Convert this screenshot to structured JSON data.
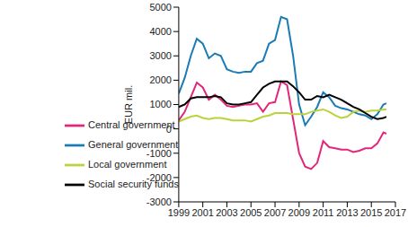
{
  "chart_data": {
    "type": "line",
    "y_label": "EUR mil.",
    "x": [
      1999.0,
      1999.5,
      2000.0,
      2000.5,
      2001.0,
      2001.5,
      2002.0,
      2002.5,
      2003.0,
      2003.5,
      2004.0,
      2004.5,
      2005.0,
      2005.5,
      2006.0,
      2006.5,
      2007.0,
      2007.5,
      2008.0,
      2008.5,
      2009.0,
      2009.5,
      2010.0,
      2010.5,
      2011.0,
      2011.5,
      2012.0,
      2012.5,
      2013.0,
      2013.5,
      2014.0,
      2014.5,
      2015.0,
      2015.5,
      2016.0,
      2016.25
    ],
    "series": [
      {
        "name": "General government",
        "color": "#1b7bb4",
        "values": [
          1450,
          2100,
          3000,
          3700,
          3500,
          2900,
          3100,
          3000,
          2450,
          2350,
          2300,
          2350,
          2350,
          2700,
          2800,
          3500,
          3650,
          4600,
          4500,
          3000,
          1000,
          150,
          500,
          900,
          1500,
          1300,
          950,
          850,
          800,
          700,
          600,
          550,
          400,
          600,
          1000,
          1050
        ]
      },
      {
        "name": "Central government",
        "color": "#e2267a",
        "values": [
          350,
          700,
          1300,
          1900,
          1700,
          1200,
          1400,
          1200,
          950,
          900,
          950,
          1000,
          1000,
          1050,
          700,
          1050,
          1100,
          1950,
          1800,
          400,
          -1000,
          -1550,
          -1650,
          -1400,
          -500,
          -750,
          -800,
          -850,
          -850,
          -950,
          -900,
          -800,
          -800,
          -600,
          -150,
          -200
        ]
      },
      {
        "name": "Local government",
        "color": "#bcd23b",
        "values": [
          300,
          400,
          500,
          550,
          450,
          400,
          450,
          450,
          400,
          350,
          350,
          350,
          300,
          400,
          500,
          550,
          650,
          650,
          650,
          600,
          600,
          600,
          700,
          750,
          800,
          700,
          550,
          450,
          500,
          700,
          750,
          700,
          750,
          750,
          800,
          800
        ]
      },
      {
        "name": "Social security funds",
        "color": "#000000",
        "values": [
          900,
          1000,
          1250,
          1300,
          1300,
          1300,
          1350,
          1300,
          1050,
          1000,
          1000,
          1050,
          1100,
          1400,
          1700,
          1850,
          1950,
          1950,
          1950,
          1750,
          1500,
          1200,
          1200,
          1350,
          1300,
          1400,
          1300,
          1200,
          1050,
          900,
          800,
          650,
          500,
          400,
          450,
          500
        ]
      }
    ],
    "xlim": [
      1999,
      2017
    ],
    "ylim": [
      -3000,
      5000
    ],
    "xticks": [
      1999,
      2001,
      2003,
      2005,
      2007,
      2009,
      2011,
      2013,
      2015,
      2017
    ],
    "yticks": [
      -3000,
      -2000,
      -1000,
      0,
      1000,
      2000,
      3000,
      4000,
      5000
    ],
    "grid": false,
    "legend": "lower left"
  }
}
